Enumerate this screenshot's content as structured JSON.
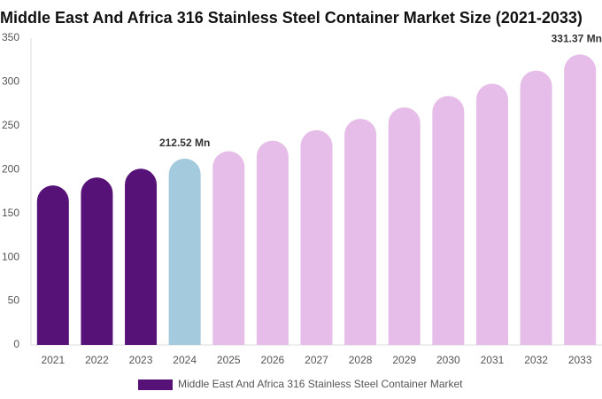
{
  "chart_data": {
    "type": "bar",
    "title": "Middle East And Africa 316 Stainless Steel Container Market Size (2021-2033)",
    "categories": [
      "2021",
      "2022",
      "2023",
      "2024",
      "2025",
      "2026",
      "2027",
      "2028",
      "2029",
      "2030",
      "2031",
      "2032",
      "2033"
    ],
    "series": [
      {
        "name": "Middle East And Africa 316 Stainless Steel Container Market",
        "color": "#561276",
        "colors": [
          "#561276",
          "#561276",
          "#561276",
          "#a4cade",
          "#e6bde8",
          "#e6bde8",
          "#e6bde8",
          "#e6bde8",
          "#e6bde8",
          "#e6bde8",
          "#e6bde8",
          "#e6bde8",
          "#e6bde8"
        ],
        "values": [
          182,
          191,
          201,
          212.52,
          221,
          233,
          245,
          258,
          271,
          284,
          298,
          313,
          331.37
        ],
        "value_labels": [
          null,
          null,
          null,
          "212.52 Mn",
          null,
          null,
          null,
          null,
          null,
          null,
          null,
          null,
          "331.37 Mn"
        ]
      }
    ],
    "ylim": [
      0,
      350
    ],
    "yticks": [
      0,
      50,
      100,
      150,
      200,
      250,
      300,
      350
    ],
    "grid": false
  }
}
